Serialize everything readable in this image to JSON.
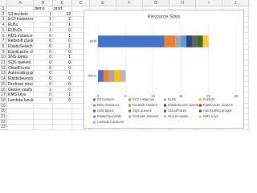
{
  "spreadsheet": {
    "columns": [
      "A",
      "B",
      "C",
      "D",
      "E",
      "F",
      "G",
      "H",
      "I",
      "J"
    ],
    "row_numbers": [
      1,
      2,
      3,
      4,
      5,
      6,
      7,
      8,
      9,
      10,
      11,
      12,
      13,
      14,
      15,
      16,
      17,
      18,
      19,
      20,
      21,
      22,
      23
    ],
    "header": [
      "demo",
      "prod"
    ],
    "rows": [
      [
        "S3 buckets",
        1,
        12
      ],
      [
        "EC2 instances",
        1,
        2
      ],
      [
        "ELBs",
        1,
        1
      ],
      [
        "ELBv2s",
        1,
        0
      ],
      [
        "RDS instances",
        0,
        1
      ],
      [
        "Redshift clusters",
        0,
        0
      ],
      [
        "ElasticSearch domains",
        0,
        1
      ],
      [
        "Elasticache clusters",
        0,
        0
      ],
      [
        "SNS topics",
        0,
        1
      ],
      [
        "SQS queues",
        0,
        0
      ],
      [
        "CloudFronts",
        0,
        0
      ],
      [
        "Autoscaling groups",
        0,
        1
      ],
      [
        "Elasticbeanstalk",
        0,
        0
      ],
      [
        "Firehose streams",
        0,
        0
      ],
      [
        "Glacier vaults",
        1,
        0
      ],
      [
        "KMS keys",
        0,
        1
      ],
      [
        "Lambda functions",
        0,
        0
      ]
    ]
  },
  "chart": {
    "type": "stacked-bar-horizontal",
    "title": "Resource Stats",
    "xlim": [
      0,
      25
    ],
    "xticks": [
      0,
      5,
      10,
      15,
      20,
      25
    ],
    "grid": true,
    "colors": [
      "#4472c4",
      "#ed7d31",
      "#a5a5a5",
      "#ffc000",
      "#5b9bd5",
      "#70ad47",
      "#264478",
      "#9e480e",
      "#636363",
      "#997300",
      "#255e91",
      "#43682b",
      "#698ed0",
      "#f1975a",
      "#b7b7b7",
      "#ffcd33",
      "#7cafdd"
    ]
  }
}
